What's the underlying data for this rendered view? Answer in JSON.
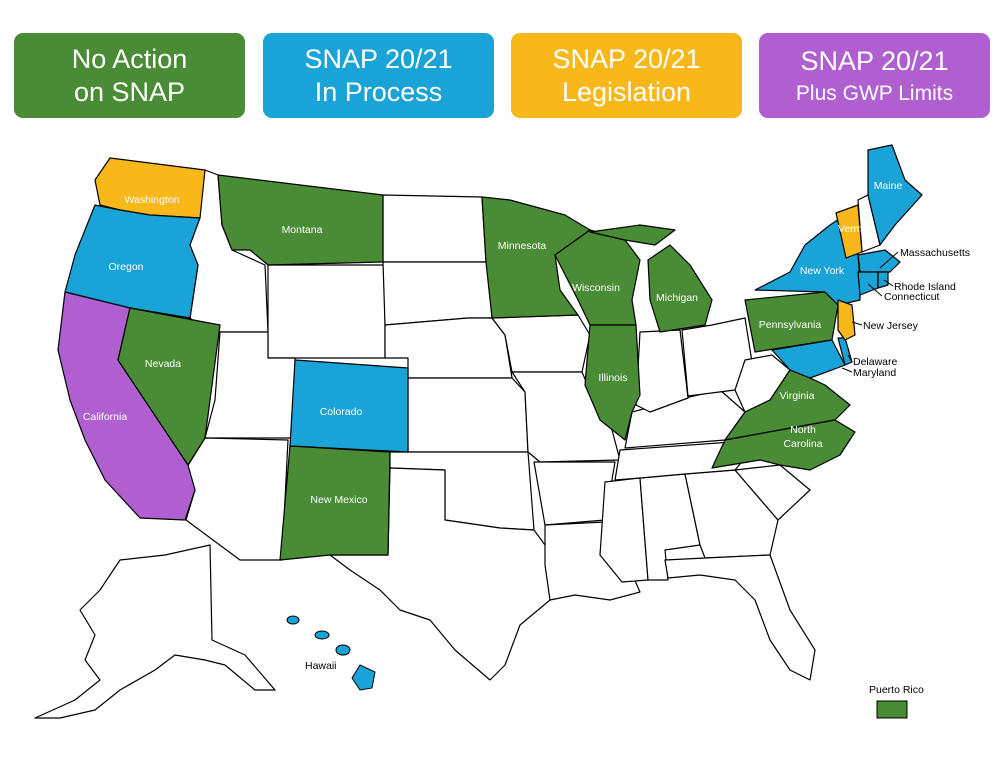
{
  "legend": [
    {
      "id": "noaction",
      "line1": "No Action",
      "line2": "on SNAP",
      "color": "#4a8c35"
    },
    {
      "id": "process",
      "line1": "SNAP 20/21",
      "line2": "In Process",
      "color": "#1aa3d6"
    },
    {
      "id": "legis",
      "line1": "SNAP 20/21",
      "line2": "Legislation",
      "color": "#f9b81a"
    },
    {
      "id": "gwp",
      "line1": "SNAP 20/21",
      "line2": "Plus GWP Limits",
      "color": "#b05fd1"
    }
  ],
  "colors": {
    "no_action": "#4a8c35",
    "in_process": "#1aa3d6",
    "legislation": "#f9b81a",
    "gwp_limits": "#b05fd1",
    "none": "#ffffff"
  },
  "states": {
    "washington": "Washington",
    "oregon": "Oregon",
    "california": "California",
    "nevada": "Nevada",
    "montana": "Montana",
    "colorado": "Colorado",
    "new_mexico": "New Mexico",
    "minnesota": "Minnesota",
    "wisconsin": "Wisconsin",
    "michigan": "Michigan",
    "illinois": "Illinois",
    "pennsylvania": "Pennsylvania",
    "virginia": "Virginia",
    "north_carolina_1": "North",
    "north_carolina_2": "Carolina",
    "new_york": "New York",
    "maine": "Maine",
    "vermont": "Vermo",
    "hawaii": "Hawaii"
  },
  "callouts": {
    "massachusetts": "Massachusetts",
    "rhode_island": "Rhode Island",
    "connecticut": "Connecticut",
    "new_jersey": "New Jersey",
    "delaware": "Delaware",
    "maryland": "Maryland",
    "puerto_rico": "Puerto Rico"
  }
}
